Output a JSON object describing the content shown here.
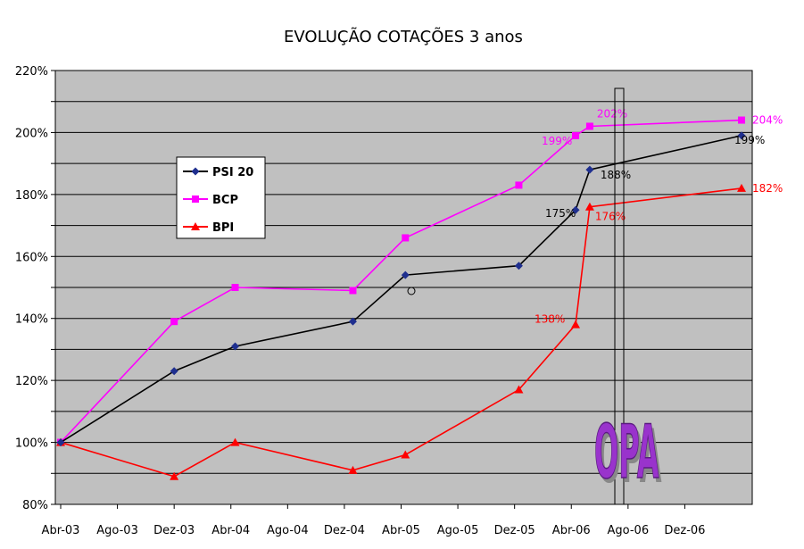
{
  "chart_data": {
    "type": "line",
    "title": "EVOLUÇÃO COTAÇÕES 3 anos",
    "x_ticks": [
      "Abr-03",
      "Ago-03",
      "Dez-03",
      "Abr-04",
      "Ago-04",
      "Dez-04",
      "Abr-05",
      "Ago-05",
      "Dez-05",
      "Abr-06",
      "Ago-06",
      "Dez-06"
    ],
    "y_ticks": [
      "80%",
      "100%",
      "120%",
      "140%",
      "160%",
      "180%",
      "200%",
      "220%"
    ],
    "ylim": [
      80,
      220
    ],
    "grid": true,
    "legend_position": "left",
    "series": [
      {
        "name": "PSI 20",
        "color": "#000000",
        "marker_color": "#1f2f8f",
        "marker": "diamond",
        "points": [
          [
            0,
            100
          ],
          [
            8,
            123
          ],
          [
            12.3,
            131
          ],
          [
            20.6,
            139
          ],
          [
            24.3,
            154
          ],
          [
            32.3,
            157
          ],
          [
            36.3,
            175
          ],
          [
            37.3,
            188
          ],
          [
            48,
            199
          ]
        ],
        "labels": [
          {
            "i": 6,
            "text": "175%"
          },
          {
            "i": 7,
            "text": "188%"
          },
          {
            "i": 8,
            "text": "199%"
          }
        ]
      },
      {
        "name": "BCP",
        "color": "#ff00ff",
        "marker_color": "#ff00ff",
        "marker": "square",
        "points": [
          [
            0,
            100
          ],
          [
            8,
            139
          ],
          [
            12.3,
            150
          ],
          [
            20.6,
            149
          ],
          [
            24.3,
            166
          ],
          [
            32.3,
            183
          ],
          [
            36.3,
            199
          ],
          [
            37.3,
            202
          ],
          [
            48,
            204
          ]
        ],
        "labels": [
          {
            "i": 6,
            "text": "199%"
          },
          {
            "i": 7,
            "text": "202%"
          },
          {
            "i": 8,
            "text": "204%"
          }
        ]
      },
      {
        "name": "BPI",
        "color": "#ff0000",
        "marker_color": "#ff0000",
        "marker": "triangle",
        "points": [
          [
            0,
            100
          ],
          [
            8,
            89
          ],
          [
            12.3,
            100
          ],
          [
            20.6,
            91
          ],
          [
            24.3,
            96
          ],
          [
            32.3,
            117
          ],
          [
            36.3,
            138
          ],
          [
            37.3,
            176
          ],
          [
            48,
            182
          ]
        ],
        "labels": [
          {
            "i": 6,
            "text": "138%"
          },
          {
            "i": 7,
            "text": "176%"
          },
          {
            "i": 8,
            "text": "182%"
          }
        ]
      }
    ],
    "annotations": [
      {
        "text": "OPA",
        "color": "#9933cc"
      }
    ]
  }
}
